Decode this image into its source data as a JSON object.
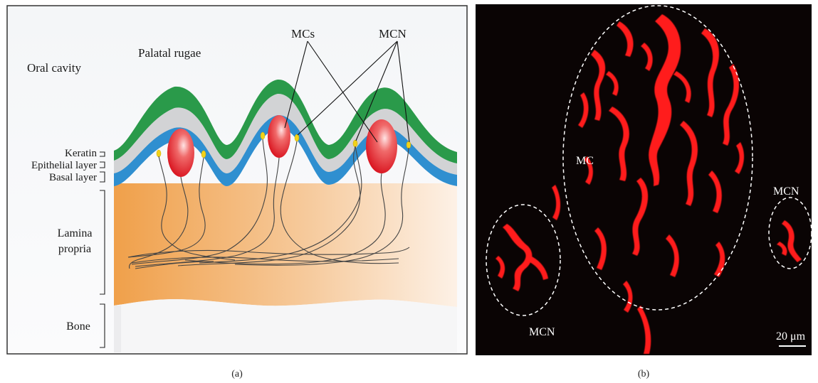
{
  "panel_a": {
    "caption": "(a)",
    "labels": {
      "oral_cavity": "Oral cavity",
      "palatal_rugae": "Palatal rugae",
      "mcs": "MCs",
      "mcn": "MCN",
      "keratin": "Keratin",
      "epithelial_layer": "Epithelial layer",
      "basal_layer": "Basal layer",
      "lamina": "Lamina",
      "propria": "propria",
      "bone": "Bone"
    },
    "colors": {
      "keratin": "#2a9a4a",
      "epithelium": "#d2d3d5",
      "basal": "#2f8fd0",
      "lamina_left": "#f0a04a",
      "merkel_cell": "#e0202a",
      "nerve_ending": "#f2d21a",
      "nerve_fiber": "#444444"
    }
  },
  "panel_b": {
    "caption": "(b)",
    "labels": {
      "mc": "MC",
      "mcn_left": "MCN",
      "mcn_right": "MCN",
      "scale_bar": "20 μm"
    },
    "colors": {
      "background": "#0a0404",
      "fluorescence": "#ff1a1a"
    }
  }
}
